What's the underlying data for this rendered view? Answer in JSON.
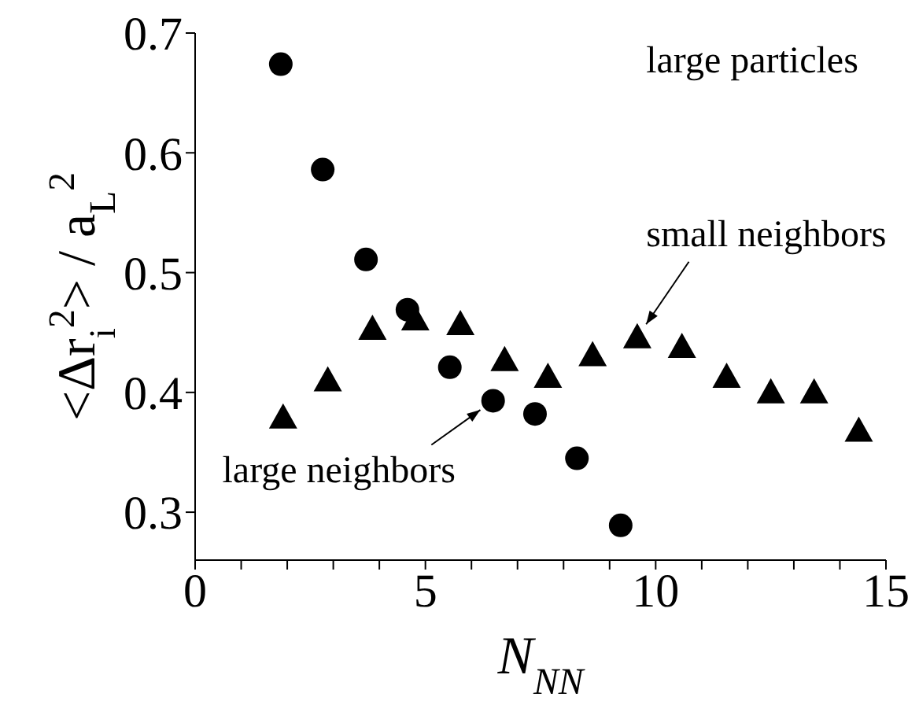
{
  "chart_data": {
    "type": "scatter",
    "xlabel": "N$_{NN}$",
    "ylabel": "<Δr$_{i}$$^{2}$> / a$_{L}$$^{2}$",
    "xlim": [
      0,
      15
    ],
    "xticks": [
      0,
      {
        "value": 1,
        "label": null
      },
      {
        "value": 2,
        "label": null
      },
      {
        "value": 3,
        "label": null
      },
      {
        "value": 4,
        "label": null
      },
      5,
      {
        "value": 6,
        "label": null
      },
      {
        "value": 7,
        "label": null
      },
      {
        "value": 8,
        "label": null
      },
      {
        "value": 9,
        "label": null
      },
      10,
      {
        "value": 11,
        "label": null
      },
      {
        "value": 12,
        "label": null
      },
      {
        "value": 13,
        "label": null
      },
      {
        "value": 14,
        "label": null
      },
      15
    ],
    "ylim": [
      0.26,
      0.7
    ],
    "yticks": [
      0.3,
      0.4,
      0.5,
      0.6,
      0.7
    ],
    "series": [
      {
        "color": "#000000",
        "marker": "circle",
        "x": [
          1.86,
          2.77,
          3.71,
          4.61,
          5.53,
          6.47,
          7.38,
          8.29,
          9.24
        ],
        "values": [
          0.674,
          0.586,
          0.511,
          0.469,
          0.421,
          0.393,
          0.382,
          0.345,
          0.289
        ]
      },
      {
        "color": "#000000",
        "marker": "triangle",
        "x": [
          1.91,
          2.88,
          3.85,
          4.78,
          5.76,
          6.72,
          7.66,
          8.63,
          9.6,
          10.57,
          11.54,
          12.5,
          13.44,
          14.41
        ],
        "values": [
          0.379,
          0.41,
          0.453,
          0.461,
          0.457,
          0.427,
          0.413,
          0.431,
          0.446,
          0.438,
          0.413,
          0.4,
          0.4,
          0.368
        ]
      }
    ],
    "annotations": [
      "large particles",
      {
        "text": "small neighbors",
        "x": 9.6,
        "y": 0.446
      },
      {
        "text": "large neighbors",
        "x": 6.47,
        "y": 0.393
      }
    ]
  }
}
